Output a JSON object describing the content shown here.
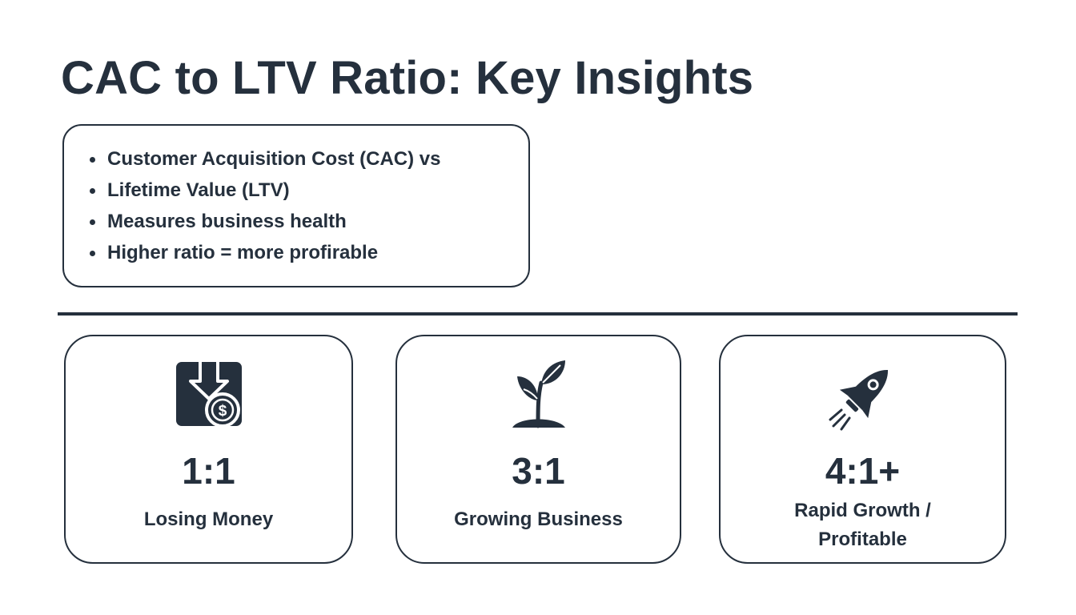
{
  "title": "CAC to LTV Ratio: Key Insights",
  "insights": [
    "Customer Acquisition Cost (CAC) vs",
    "Lifetime Value (LTV)",
    "Measures business health",
    "Higher ratio = more profirable"
  ],
  "cards": [
    {
      "icon": "box-down-arrow-dollar-icon",
      "ratio": "1:1",
      "label_lines": [
        "Losing Money"
      ]
    },
    {
      "icon": "sprout-icon",
      "ratio": "3:1",
      "label_lines": [
        "Growing Business"
      ]
    },
    {
      "icon": "rocket-icon",
      "ratio": "4:1+",
      "label_lines": [
        "Rapid Growth /",
        "Profitable"
      ]
    }
  ],
  "colors": {
    "text": "#25303d",
    "border": "#25303d",
    "background": "#ffffff"
  }
}
